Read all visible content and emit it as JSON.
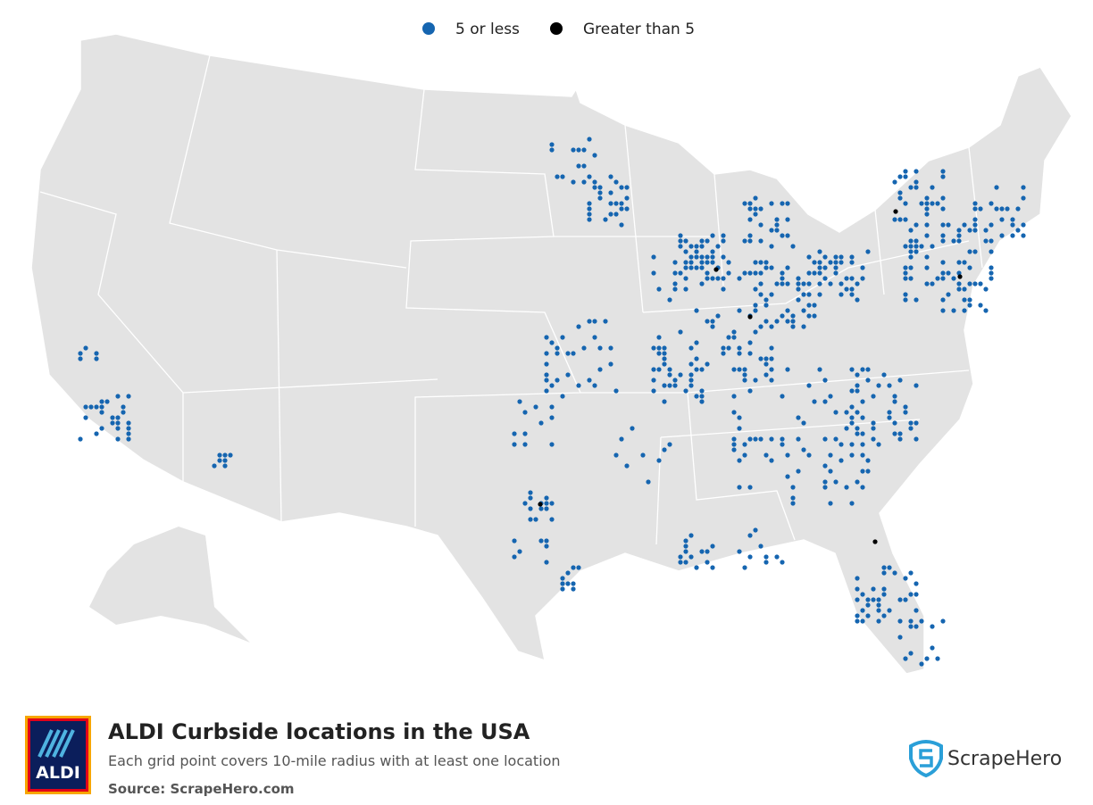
{
  "legend": {
    "items": [
      {
        "label": "5 or less",
        "color": "#1565b0"
      },
      {
        "label": "Greater than 5",
        "color": "#000000"
      }
    ]
  },
  "footer": {
    "logo": "ALDI",
    "title": "ALDI Curbside locations in the USA",
    "subtitle": "Each grid point covers 10-mile radius with at least one location",
    "source": "Source: ScrapeHero.com",
    "brand": "ScrapeHero"
  }
}
